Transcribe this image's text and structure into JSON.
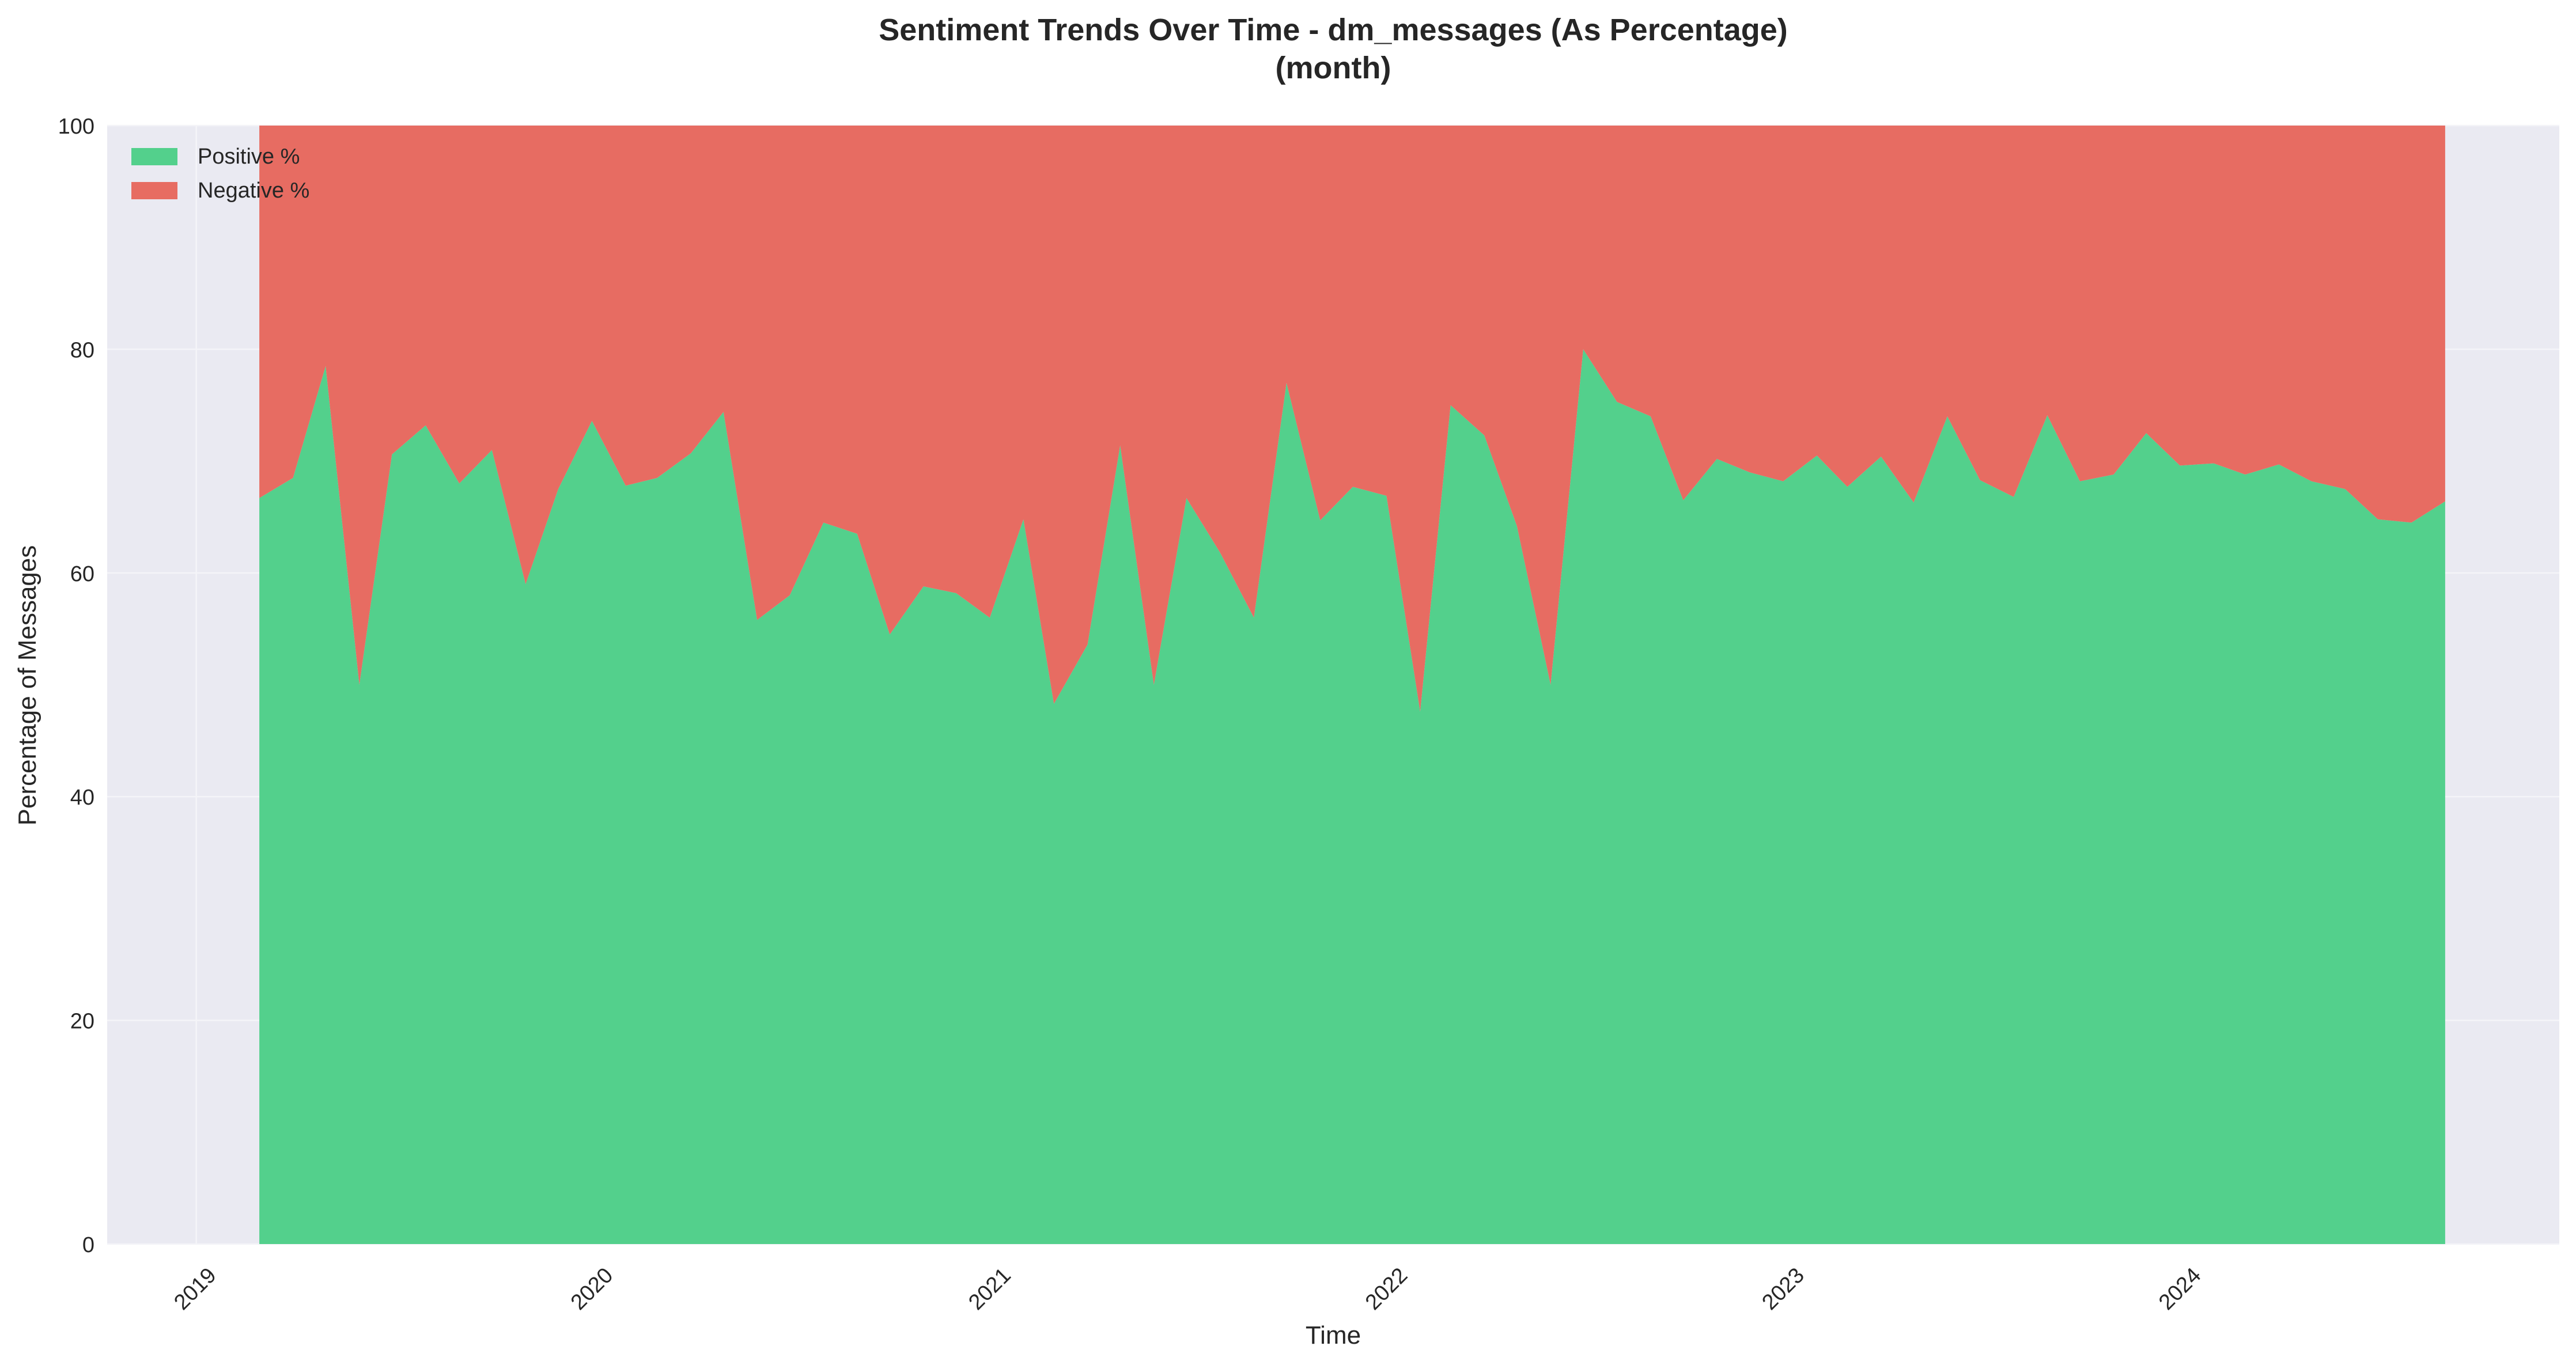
{
  "chart_data": {
    "type": "area",
    "stacked": true,
    "percent": true,
    "title": "Sentiment Trends Over Time - dm_messages (As Percentage)",
    "subtitle": "(month)",
    "xlabel": "Time",
    "ylabel": "Percentage of Messages",
    "ylim": [
      0,
      100
    ],
    "yticks": [
      0,
      20,
      40,
      60,
      80,
      100
    ],
    "xlim": [
      "2018-10-11",
      "2024-12-14"
    ],
    "xticks": [
      "2019-01-01",
      "2020-01-01",
      "2021-01-01",
      "2022-01-01",
      "2023-01-01",
      "2024-01-01"
    ],
    "xtick_labels": [
      "2019",
      "2020",
      "2021",
      "2022",
      "2023",
      "2024"
    ],
    "grid": true,
    "legend_position": "top-left",
    "colors": {
      "positive": "#53d08c",
      "negative": "#e76c62",
      "plot_background": "#eaeaf2",
      "grid": "#f4f4f8"
    },
    "x": [
      "2019-02-28",
      "2019-03-31",
      "2019-04-30",
      "2019-05-31",
      "2019-06-30",
      "2019-07-31",
      "2019-08-31",
      "2019-09-30",
      "2019-10-31",
      "2019-11-30",
      "2019-12-31",
      "2020-01-31",
      "2020-02-29",
      "2020-03-31",
      "2020-04-30",
      "2020-05-31",
      "2020-06-30",
      "2020-07-31",
      "2020-08-31",
      "2020-09-30",
      "2020-10-31",
      "2020-11-30",
      "2020-12-31",
      "2021-01-31",
      "2021-02-28",
      "2021-03-31",
      "2021-04-30",
      "2021-05-31",
      "2021-06-30",
      "2021-07-31",
      "2021-08-31",
      "2021-09-30",
      "2021-10-31",
      "2021-11-30",
      "2021-12-31",
      "2022-01-31",
      "2022-02-28",
      "2022-03-31",
      "2022-04-30",
      "2022-05-31",
      "2022-06-30",
      "2022-07-31",
      "2022-08-31",
      "2022-09-30",
      "2022-10-31",
      "2022-11-30",
      "2022-12-31",
      "2023-01-31",
      "2023-02-28",
      "2023-03-31",
      "2023-04-30",
      "2023-05-31",
      "2023-06-30",
      "2023-07-31",
      "2023-08-31",
      "2023-09-30",
      "2023-10-31",
      "2023-11-30",
      "2023-12-31",
      "2024-01-31",
      "2024-02-29",
      "2024-03-31",
      "2024-04-30",
      "2024-05-31",
      "2024-06-30",
      "2024-07-31",
      "2024-08-31"
    ],
    "series": [
      {
        "name": "Positive %",
        "values": [
          66.7,
          68.5,
          78.5,
          50.0,
          70.6,
          73.2,
          68.0,
          71.0,
          59.0,
          67.5,
          73.6,
          67.8,
          68.5,
          70.7,
          74.4,
          55.8,
          58.0,
          64.5,
          63.5,
          54.5,
          58.8,
          58.2,
          56.0,
          64.8,
          48.3,
          53.6,
          71.4,
          50.0,
          66.7,
          61.8,
          56.0,
          77.0,
          64.7,
          67.7,
          66.9,
          47.6,
          75.0,
          72.3,
          64.2,
          50.0,
          80.0,
          75.3,
          74.0,
          66.5,
          70.2,
          69.0,
          68.2,
          70.5,
          67.7,
          70.4,
          66.3,
          74.0,
          68.3,
          66.8,
          74.1,
          68.2,
          68.8,
          72.5,
          69.6,
          69.8,
          68.8,
          69.7,
          68.2,
          67.5,
          64.8,
          64.5,
          66.4
        ]
      },
      {
        "name": "Negative %",
        "values": [
          33.3,
          31.5,
          21.5,
          50.0,
          29.4,
          26.8,
          32.0,
          29.0,
          41.0,
          32.5,
          26.4,
          32.2,
          31.5,
          29.3,
          25.6,
          44.2,
          42.0,
          35.5,
          36.5,
          45.5,
          41.2,
          41.8,
          44.0,
          35.2,
          51.7,
          46.4,
          28.6,
          50.0,
          33.3,
          38.2,
          44.0,
          23.0,
          35.3,
          32.3,
          33.1,
          52.4,
          25.0,
          27.7,
          35.8,
          50.0,
          20.0,
          24.7,
          26.0,
          33.5,
          29.8,
          31.0,
          31.8,
          29.5,
          32.3,
          29.6,
          33.7,
          26.0,
          31.7,
          33.2,
          25.9,
          31.8,
          31.2,
          27.5,
          30.4,
          30.2,
          31.2,
          30.3,
          31.8,
          32.5,
          35.2,
          35.5,
          33.6
        ]
      }
    ]
  }
}
